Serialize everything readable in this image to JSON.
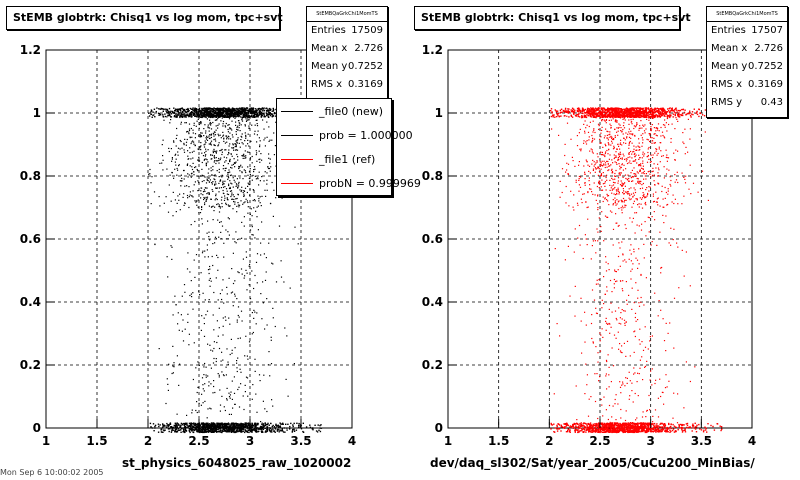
{
  "chart_data": [
    {
      "type": "scatter",
      "title": "StEMB globtrk: Chisq1 vs log mom, tpc+svt",
      "xlabel": "st_physics_6048025_raw_1020002",
      "xlim": [
        1,
        4
      ],
      "ylim": [
        0,
        1.2
      ],
      "xticks": [
        "1",
        "1.5",
        "2",
        "2.5",
        "3",
        "3.5",
        "4"
      ],
      "yticks": [
        "0",
        "0.2",
        "0.4",
        "0.6",
        "0.8",
        "1",
        "1.2"
      ],
      "grid": true,
      "color": "#000000",
      "stats": {
        "name": "StEMBQaGrkChi1MomTS",
        "rows": [
          {
            "label": "Entries",
            "value": "17509"
          },
          {
            "label": "Mean x",
            "value": "2.726"
          },
          {
            "label": "Mean y",
            "value": "0.7252"
          },
          {
            "label": "RMS x",
            "value": "0.3169"
          }
        ]
      },
      "legend": [
        {
          "label": "_file0 (new)",
          "color": "#000000"
        },
        {
          "label": "prob = 1.000000",
          "color": "#000000"
        },
        {
          "label": "_file1 (ref)",
          "color": "#ff0000"
        },
        {
          "label": "probN = 0.999969",
          "color": "#ff0000"
        }
      ],
      "legend_position": "top-right",
      "distribution": {
        "x_range": [
          2.0,
          3.7
        ],
        "x_mean": 2.726,
        "x_rms": 0.3169,
        "y_bands": [
          0,
          1
        ],
        "n_entries": 17509
      }
    },
    {
      "type": "scatter",
      "title": "StEMB globtrk: Chisq1 vs log mom, tpc+svt",
      "xlabel": "dev/daq_sl302/Sat/year_2005/CuCu200_MinBias/",
      "xlim": [
        1,
        4
      ],
      "ylim": [
        0,
        1.2
      ],
      "xticks": [
        "1",
        "1.5",
        "2",
        "2.5",
        "3",
        "3.5",
        "4"
      ],
      "yticks": [
        "0",
        "0.2",
        "0.4",
        "0.6",
        "0.8",
        "1",
        "1.2"
      ],
      "grid": true,
      "color": "#ff0000",
      "stats": {
        "name": "StEMBQaGrkChi1MomTS",
        "rows": [
          {
            "label": "Entries",
            "value": "17507"
          },
          {
            "label": "Mean x",
            "value": "2.726"
          },
          {
            "label": "Mean y",
            "value": "0.7252"
          },
          {
            "label": "RMS x",
            "value": "0.3169"
          },
          {
            "label": "RMS y",
            "value": "0.43"
          }
        ]
      },
      "distribution": {
        "x_range": [
          2.0,
          3.7
        ],
        "x_mean": 2.726,
        "x_rms": 0.3169,
        "y_bands": [
          0,
          1
        ],
        "n_entries": 17507
      }
    }
  ],
  "footer": "Mon Sep  6 10:00:02 2005"
}
